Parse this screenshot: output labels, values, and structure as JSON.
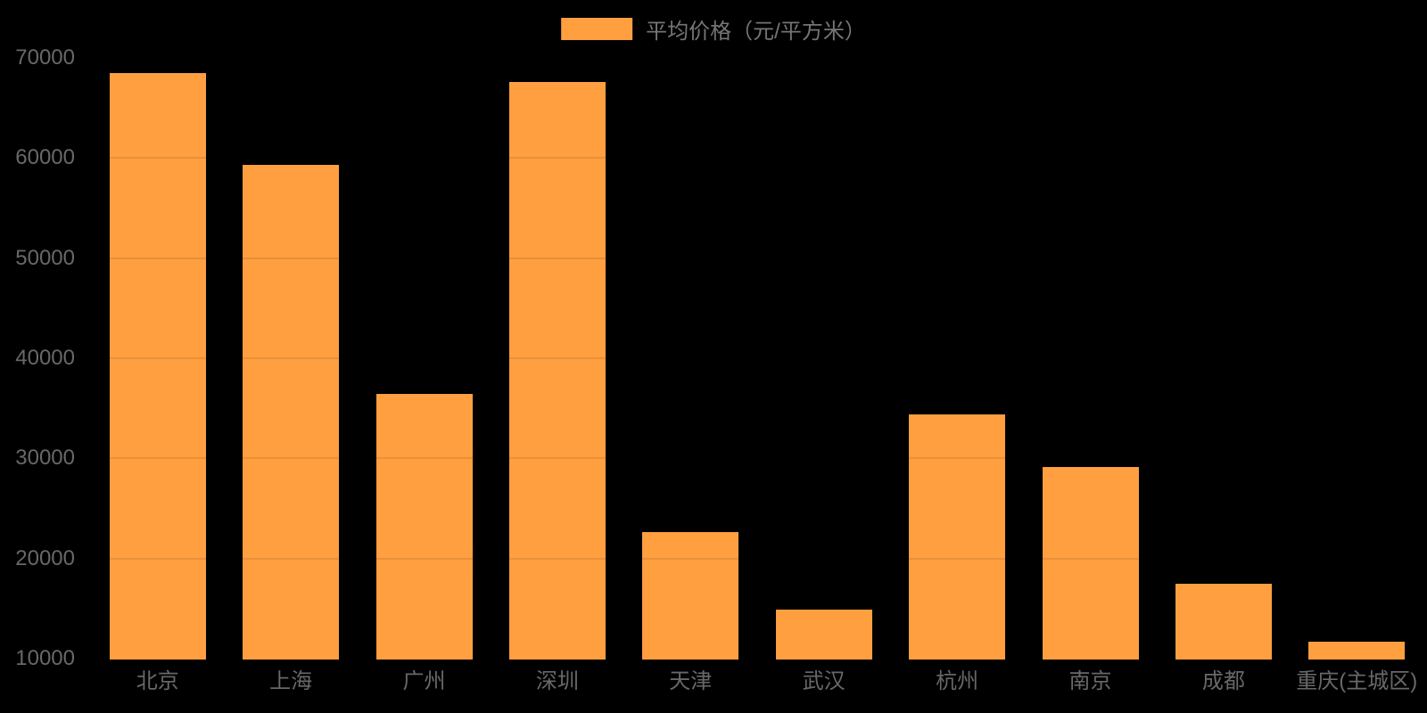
{
  "chart_data": {
    "type": "bar",
    "title": "",
    "series_name": "平均价格（元/平方米）",
    "categories": [
      "北京",
      "上海",
      "广州",
      "深圳",
      "天津",
      "武汉",
      "杭州",
      "南京",
      "成都",
      "重庆(主城区)"
    ],
    "values": [
      68500,
      59300,
      36400,
      67600,
      22600,
      14900,
      34400,
      29100,
      17500,
      11700
    ],
    "xlabel": "",
    "ylabel": "",
    "ylim": [
      10000,
      70000
    ],
    "y_ticks": [
      10000,
      20000,
      30000,
      40000,
      50000,
      60000,
      70000
    ],
    "legend_position": "top",
    "grid": "horizontal faint lines, visible only across bars",
    "colors": {
      "bar": "#FF9F40",
      "axis_label": "#686868",
      "legend_label": "#757575",
      "background": "#000000"
    }
  }
}
